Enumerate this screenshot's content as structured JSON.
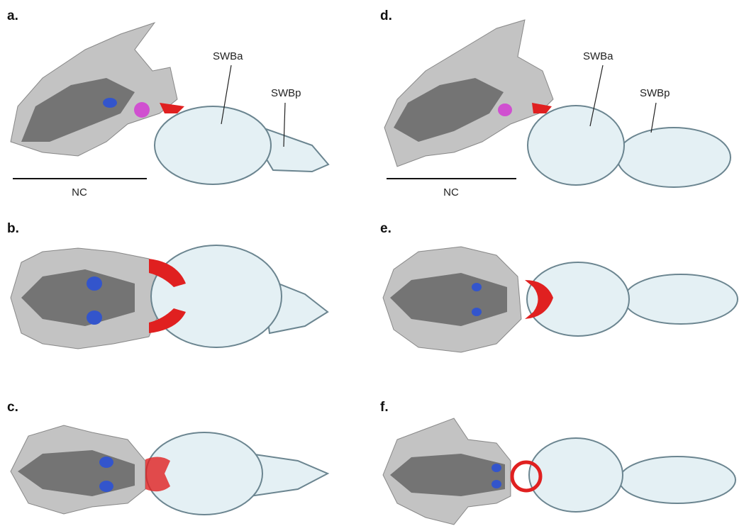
{
  "panels": [
    {
      "label": "a.",
      "annotations": [
        "SWBa",
        "SWBp"
      ],
      "scale_label": "NC"
    },
    {
      "label": "b."
    },
    {
      "label": "c."
    },
    {
      "label": "d.",
      "annotations": [
        "SWBa",
        "SWBp"
      ],
      "scale_label": "NC"
    },
    {
      "label": "e."
    },
    {
      "label": "f."
    }
  ]
}
